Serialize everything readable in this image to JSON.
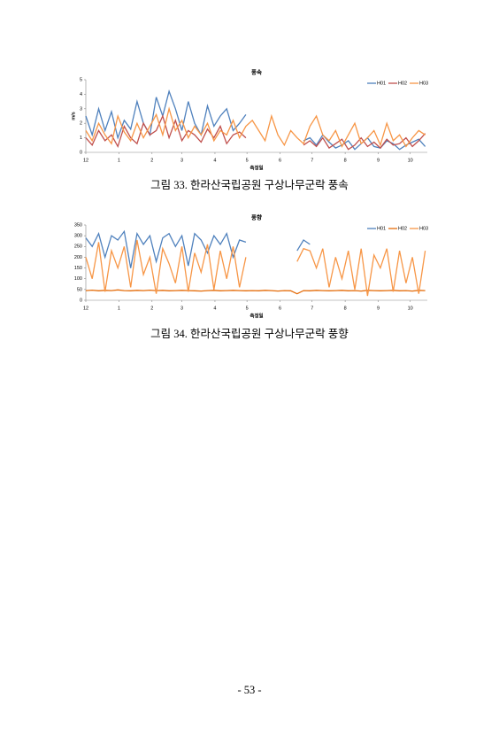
{
  "chart_data": [
    {
      "type": "line",
      "title": "풍속",
      "xlabel": "측정일",
      "ylabel": "m/s",
      "x": [
        0,
        6,
        12,
        18,
        24,
        30,
        36,
        42,
        48,
        54,
        60,
        66,
        72,
        78,
        84,
        90,
        96,
        102,
        108,
        114,
        120,
        126,
        132,
        138,
        144,
        150,
        156,
        162,
        168,
        174,
        180,
        186,
        192,
        198,
        204,
        210,
        216,
        222,
        228,
        234,
        240,
        246,
        252,
        258,
        264,
        270,
        276,
        282,
        288,
        294,
        300,
        306,
        312,
        318
      ],
      "xlim": [
        0,
        320
      ],
      "xticks": [
        {
          "value": 0,
          "label": "12"
        },
        {
          "value": 31,
          "label": "1"
        },
        {
          "value": 62,
          "label": "2"
        },
        {
          "value": 90,
          "label": "3"
        },
        {
          "value": 121,
          "label": "4"
        },
        {
          "value": 151,
          "label": "5"
        },
        {
          "value": 182,
          "label": "6"
        },
        {
          "value": 212,
          "label": "7"
        },
        {
          "value": 243,
          "label": "8"
        },
        {
          "value": 274,
          "label": "9"
        },
        {
          "value": 304,
          "label": "10"
        }
      ],
      "ylim": [
        0,
        5
      ],
      "yticks": [
        0,
        1,
        2,
        3,
        4,
        5
      ],
      "legend": "top-right",
      "series": [
        {
          "name": "H01",
          "color": "#4f81bd",
          "values": [
            2.5,
            1.2,
            3.0,
            1.5,
            2.8,
            1.0,
            2.2,
            1.6,
            3.5,
            2.0,
            1.2,
            3.8,
            2.5,
            4.2,
            3.0,
            1.5,
            3.5,
            2.0,
            1.2,
            3.2,
            1.8,
            2.5,
            3.0,
            1.5,
            2.0,
            2.6,
            null,
            null,
            null,
            null,
            null,
            null,
            null,
            null,
            0.8,
            1.0,
            0.5,
            1.2,
            0.7,
            0.3,
            0.5,
            0.8,
            0.2,
            0.6,
            1.0,
            0.4,
            0.3,
            0.8,
            0.6,
            0.2,
            0.5,
            0.7,
            0.9,
            0.4
          ]
        },
        {
          "name": "H02",
          "color": "#c0504d",
          "values": [
            1.0,
            0.5,
            1.5,
            0.8,
            1.2,
            0.4,
            1.8,
            1.0,
            0.6,
            2.0,
            1.2,
            1.5,
            2.5,
            1.0,
            2.2,
            0.8,
            1.5,
            1.2,
            0.7,
            1.6,
            1.0,
            1.8,
            0.6,
            1.2,
            1.4,
            1.0,
            null,
            null,
            null,
            null,
            null,
            null,
            null,
            null,
            0.5,
            0.8,
            0.4,
            1.0,
            0.3,
            0.6,
            0.9,
            0.2,
            0.5,
            1.0,
            0.4,
            0.7,
            0.3,
            0.9,
            0.5,
            0.6,
            1.0,
            0.4,
            0.8,
            1.3
          ]
        },
        {
          "name": "H03",
          "color": "#f79646",
          "values": [
            1.5,
            0.8,
            2.0,
            1.2,
            0.6,
            2.5,
            1.4,
            0.8,
            2.0,
            1.0,
            1.8,
            2.6,
            1.2,
            3.0,
            1.5,
            2.2,
            1.0,
            1.8,
            1.2,
            2.0,
            0.8,
            1.5,
            1.2,
            2.2,
            1.0,
            1.8,
            2.2,
            1.5,
            0.8,
            2.5,
            1.2,
            0.5,
            1.5,
            1.0,
            0.6,
            1.8,
            2.5,
            1.2,
            0.8,
            1.5,
            0.4,
            1.2,
            2.0,
            0.6,
            1.0,
            1.5,
            0.5,
            2.0,
            0.8,
            1.2,
            0.4,
            1.0,
            1.5,
            1.2
          ]
        }
      ]
    },
    {
      "type": "line",
      "title": "풍향",
      "xlabel": "측정일",
      "x": [
        0,
        6,
        12,
        18,
        24,
        30,
        36,
        42,
        48,
        54,
        60,
        66,
        72,
        78,
        84,
        90,
        96,
        102,
        108,
        114,
        120,
        126,
        132,
        138,
        144,
        150,
        156,
        162,
        168,
        174,
        180,
        186,
        192,
        198,
        204,
        210,
        216,
        222,
        228,
        234,
        240,
        246,
        252,
        258,
        264,
        270,
        276,
        282,
        288,
        294,
        300,
        306,
        312,
        318
      ],
      "xlim": [
        0,
        320
      ],
      "xticks": [
        {
          "value": 0,
          "label": "12"
        },
        {
          "value": 31,
          "label": "1"
        },
        {
          "value": 62,
          "label": "2"
        },
        {
          "value": 90,
          "label": "3"
        },
        {
          "value": 121,
          "label": "4"
        },
        {
          "value": 151,
          "label": "5"
        },
        {
          "value": 182,
          "label": "6"
        },
        {
          "value": 212,
          "label": "7"
        },
        {
          "value": 243,
          "label": "8"
        },
        {
          "value": 274,
          "label": "9"
        },
        {
          "value": 304,
          "label": "10"
        }
      ],
      "ylim": [
        0,
        350
      ],
      "yticks": [
        0,
        50,
        100,
        150,
        200,
        250,
        300,
        350
      ],
      "legend": "top-right",
      "series": [
        {
          "name": "H01",
          "color": "#4f81bd",
          "values": [
            290,
            250,
            310,
            200,
            300,
            280,
            320,
            150,
            310,
            260,
            300,
            180,
            290,
            310,
            250,
            300,
            160,
            310,
            280,
            220,
            300,
            260,
            310,
            200,
            280,
            270,
            null,
            null,
            null,
            null,
            null,
            null,
            null,
            230,
            280,
            260,
            null,
            null,
            null,
            null,
            null,
            null,
            null,
            null,
            null,
            null,
            null,
            null,
            null,
            null,
            null,
            null,
            null,
            null
          ]
        },
        {
          "name": "H02",
          "color": "#e46c0a",
          "values": [
            45,
            47,
            44,
            46,
            45,
            48,
            45,
            44,
            46,
            45,
            47,
            45,
            46,
            44,
            45,
            46,
            45,
            44,
            43,
            45,
            46,
            44,
            45,
            46,
            45,
            44,
            45,
            44,
            46,
            45,
            43,
            45,
            44,
            30,
            45,
            44,
            46,
            45,
            44,
            45,
            46,
            44,
            45,
            43,
            46,
            45,
            44,
            45,
            46,
            44,
            45,
            43,
            46,
            45
          ]
        },
        {
          "name": "H03",
          "color": "#f79646",
          "values": [
            200,
            100,
            270,
            40,
            230,
            150,
            250,
            60,
            280,
            120,
            200,
            30,
            240,
            170,
            80,
            250,
            40,
            220,
            130,
            260,
            50,
            230,
            100,
            250,
            60,
            200,
            null,
            null,
            null,
            null,
            null,
            null,
            null,
            180,
            240,
            230,
            150,
            240,
            60,
            200,
            100,
            230,
            50,
            240,
            20,
            210,
            150,
            240,
            40,
            230,
            80,
            200,
            30,
            230
          ]
        }
      ]
    }
  ],
  "captions": [
    "그림 33. 한라산국립공원 구상나무군락 풍속",
    "그림 34. 한라산국립공원 구상나무군락 풍향"
  ],
  "page_number": "- 53 -"
}
